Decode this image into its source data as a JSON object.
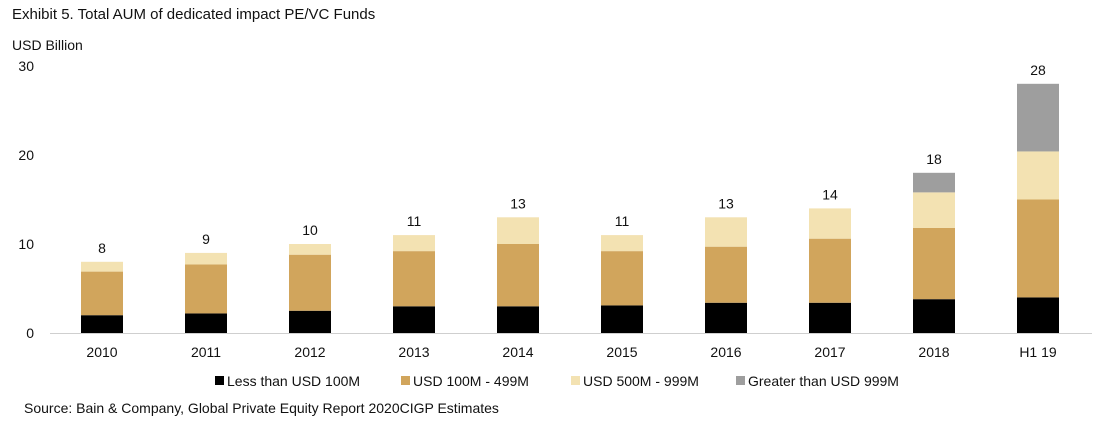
{
  "title": "Exhibit 5. Total AUM of dedicated  impact PE/VC Funds",
  "unit_label": "USD Billion",
  "source": "Source: Bain & Company, Global Private Equity Report 2020CIGP Estimates",
  "colors": {
    "less_than_100m": "#000000",
    "usd_100m_499m": "#d1a55c",
    "usd_500m_999m": "#f3e2b2",
    "greater_than_999m": "#9e9e9e"
  },
  "chart_data": {
    "type": "bar",
    "stacked": true,
    "categories": [
      "2010",
      "2011",
      "2012",
      "2013",
      "2014",
      "2015",
      "2016",
      "2017",
      "2018",
      "H1 19"
    ],
    "series": [
      {
        "name": "Less than USD 100M",
        "color": "#000000",
        "values": [
          2.0,
          2.2,
          2.5,
          3.0,
          3.0,
          3.1,
          3.4,
          3.4,
          3.8,
          4.0
        ]
      },
      {
        "name": "USD 100M - 499M",
        "color": "#d1a55c",
        "values": [
          4.9,
          5.5,
          6.3,
          6.2,
          7.0,
          6.1,
          6.3,
          7.2,
          8.0,
          11.0
        ]
      },
      {
        "name": "USD 500M - 999M",
        "color": "#f3e2b2",
        "values": [
          1.1,
          1.3,
          1.2,
          1.8,
          3.0,
          1.8,
          3.3,
          3.4,
          4.0,
          5.4
        ]
      },
      {
        "name": "Greater than USD 999M",
        "color": "#9e9e9e",
        "values": [
          0,
          0,
          0,
          0,
          0,
          0,
          0,
          0,
          2.2,
          7.6
        ]
      }
    ],
    "totals": [
      "8",
      "9",
      "10",
      "11",
      "13",
      "11",
      "13",
      "14",
      "18",
      "28"
    ],
    "y_ticks": [
      "0",
      "10",
      "20",
      "30"
    ],
    "ylim": [
      0,
      30
    ],
    "grid": false,
    "legend_position": "bottom"
  }
}
